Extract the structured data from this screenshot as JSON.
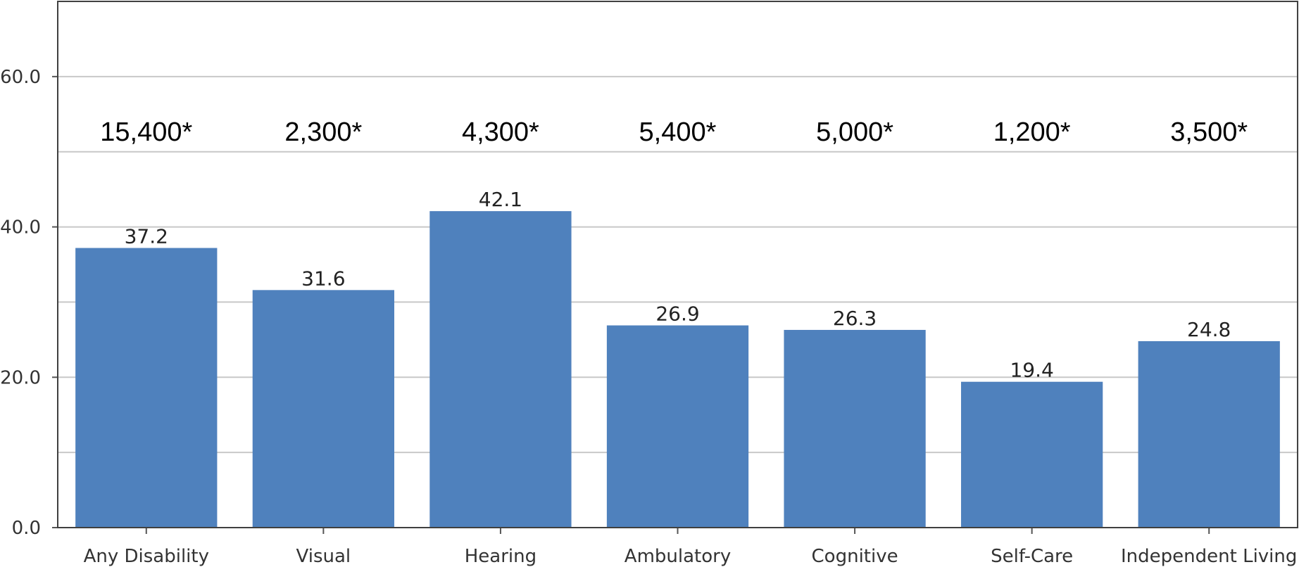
{
  "chart_data": {
    "type": "bar",
    "categories": [
      "Any Disability",
      "Visual",
      "Hearing",
      "Ambulatory",
      "Cognitive",
      "Self-Care",
      "Independent Living"
    ],
    "values": [
      37.2,
      31.6,
      42.1,
      26.9,
      26.3,
      19.4,
      24.8
    ],
    "value_labels": [
      "37.2",
      "31.6",
      "42.1",
      "26.9",
      "26.3",
      "19.4",
      "24.8"
    ],
    "annotations": [
      "15,400*",
      "2,300*",
      "4,300*",
      "5,400*",
      "5,000*",
      "1,200*",
      "3,500*"
    ],
    "y_ticks": [
      0,
      20,
      40,
      60
    ],
    "y_tick_labels": [
      "0.0",
      "20.0",
      "40.0",
      "60.0"
    ],
    "ylim": [
      0,
      70
    ],
    "gridlines_every": 10,
    "grid": true,
    "colors": {
      "bar": "#4f81bd",
      "grid": "#c8c8c8",
      "axis": "#555555",
      "frame": "#404040"
    }
  }
}
